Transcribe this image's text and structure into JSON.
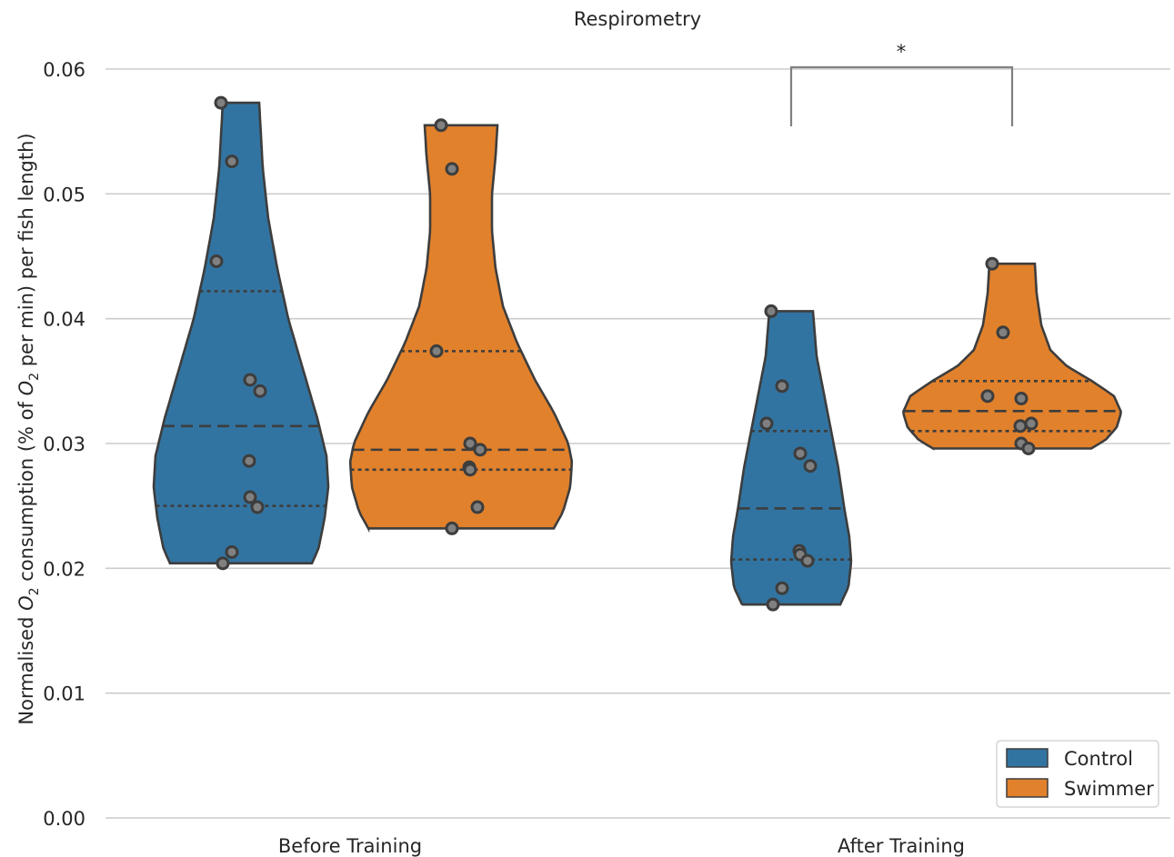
{
  "chart_data": {
    "type": "violin",
    "title": "Respirometry",
    "ylabel": "Normalised O2 consumption (% of O2 per min) per fish length",
    "xlabel": "",
    "ylim": [
      0.0,
      0.06
    ],
    "yticks": [
      "0.00",
      "0.01",
      "0.02",
      "0.03",
      "0.04",
      "0.05",
      "0.06"
    ],
    "categories": [
      "Before Training",
      "After Training"
    ],
    "legend_position": "bottom-right",
    "grid": true,
    "series": [
      {
        "name": "Control",
        "color": "#3274a1",
        "groups": [
          {
            "category": "Before Training",
            "min": 0.0204,
            "max": 0.0573,
            "q1": 0.025,
            "median": 0.0314,
            "q3": 0.0422,
            "points": [
              0.0573,
              0.0526,
              0.0446,
              0.0351,
              0.0342,
              0.0286,
              0.0257,
              0.0249,
              0.0213,
              0.0204
            ]
          },
          {
            "category": "After Training",
            "min": 0.0171,
            "max": 0.0406,
            "q1": 0.0207,
            "median": 0.0248,
            "q3": 0.031,
            "points": [
              0.0406,
              0.0346,
              0.0316,
              0.0292,
              0.0282,
              0.0214,
              0.0211,
              0.0206,
              0.0184,
              0.0171
            ]
          }
        ]
      },
      {
        "name": "Swimmer",
        "color": "#e1812c",
        "groups": [
          {
            "category": "Before Training",
            "min": 0.0232,
            "max": 0.0555,
            "q1": 0.0279,
            "median": 0.0295,
            "q3": 0.0374,
            "points": [
              0.0555,
              0.052,
              0.0374,
              0.03,
              0.0295,
              0.0281,
              0.0279,
              0.0249,
              0.0232
            ]
          },
          {
            "category": "After Training",
            "min": 0.0296,
            "max": 0.0444,
            "q1": 0.031,
            "median": 0.0326,
            "q3": 0.035,
            "points": [
              0.0444,
              0.0389,
              0.0338,
              0.0336,
              0.0316,
              0.0314,
              0.03,
              0.0296
            ]
          }
        ]
      }
    ],
    "annotations": [
      {
        "text": "*",
        "category": "After Training",
        "between": [
          "Control",
          "Swimmer"
        ]
      }
    ]
  }
}
